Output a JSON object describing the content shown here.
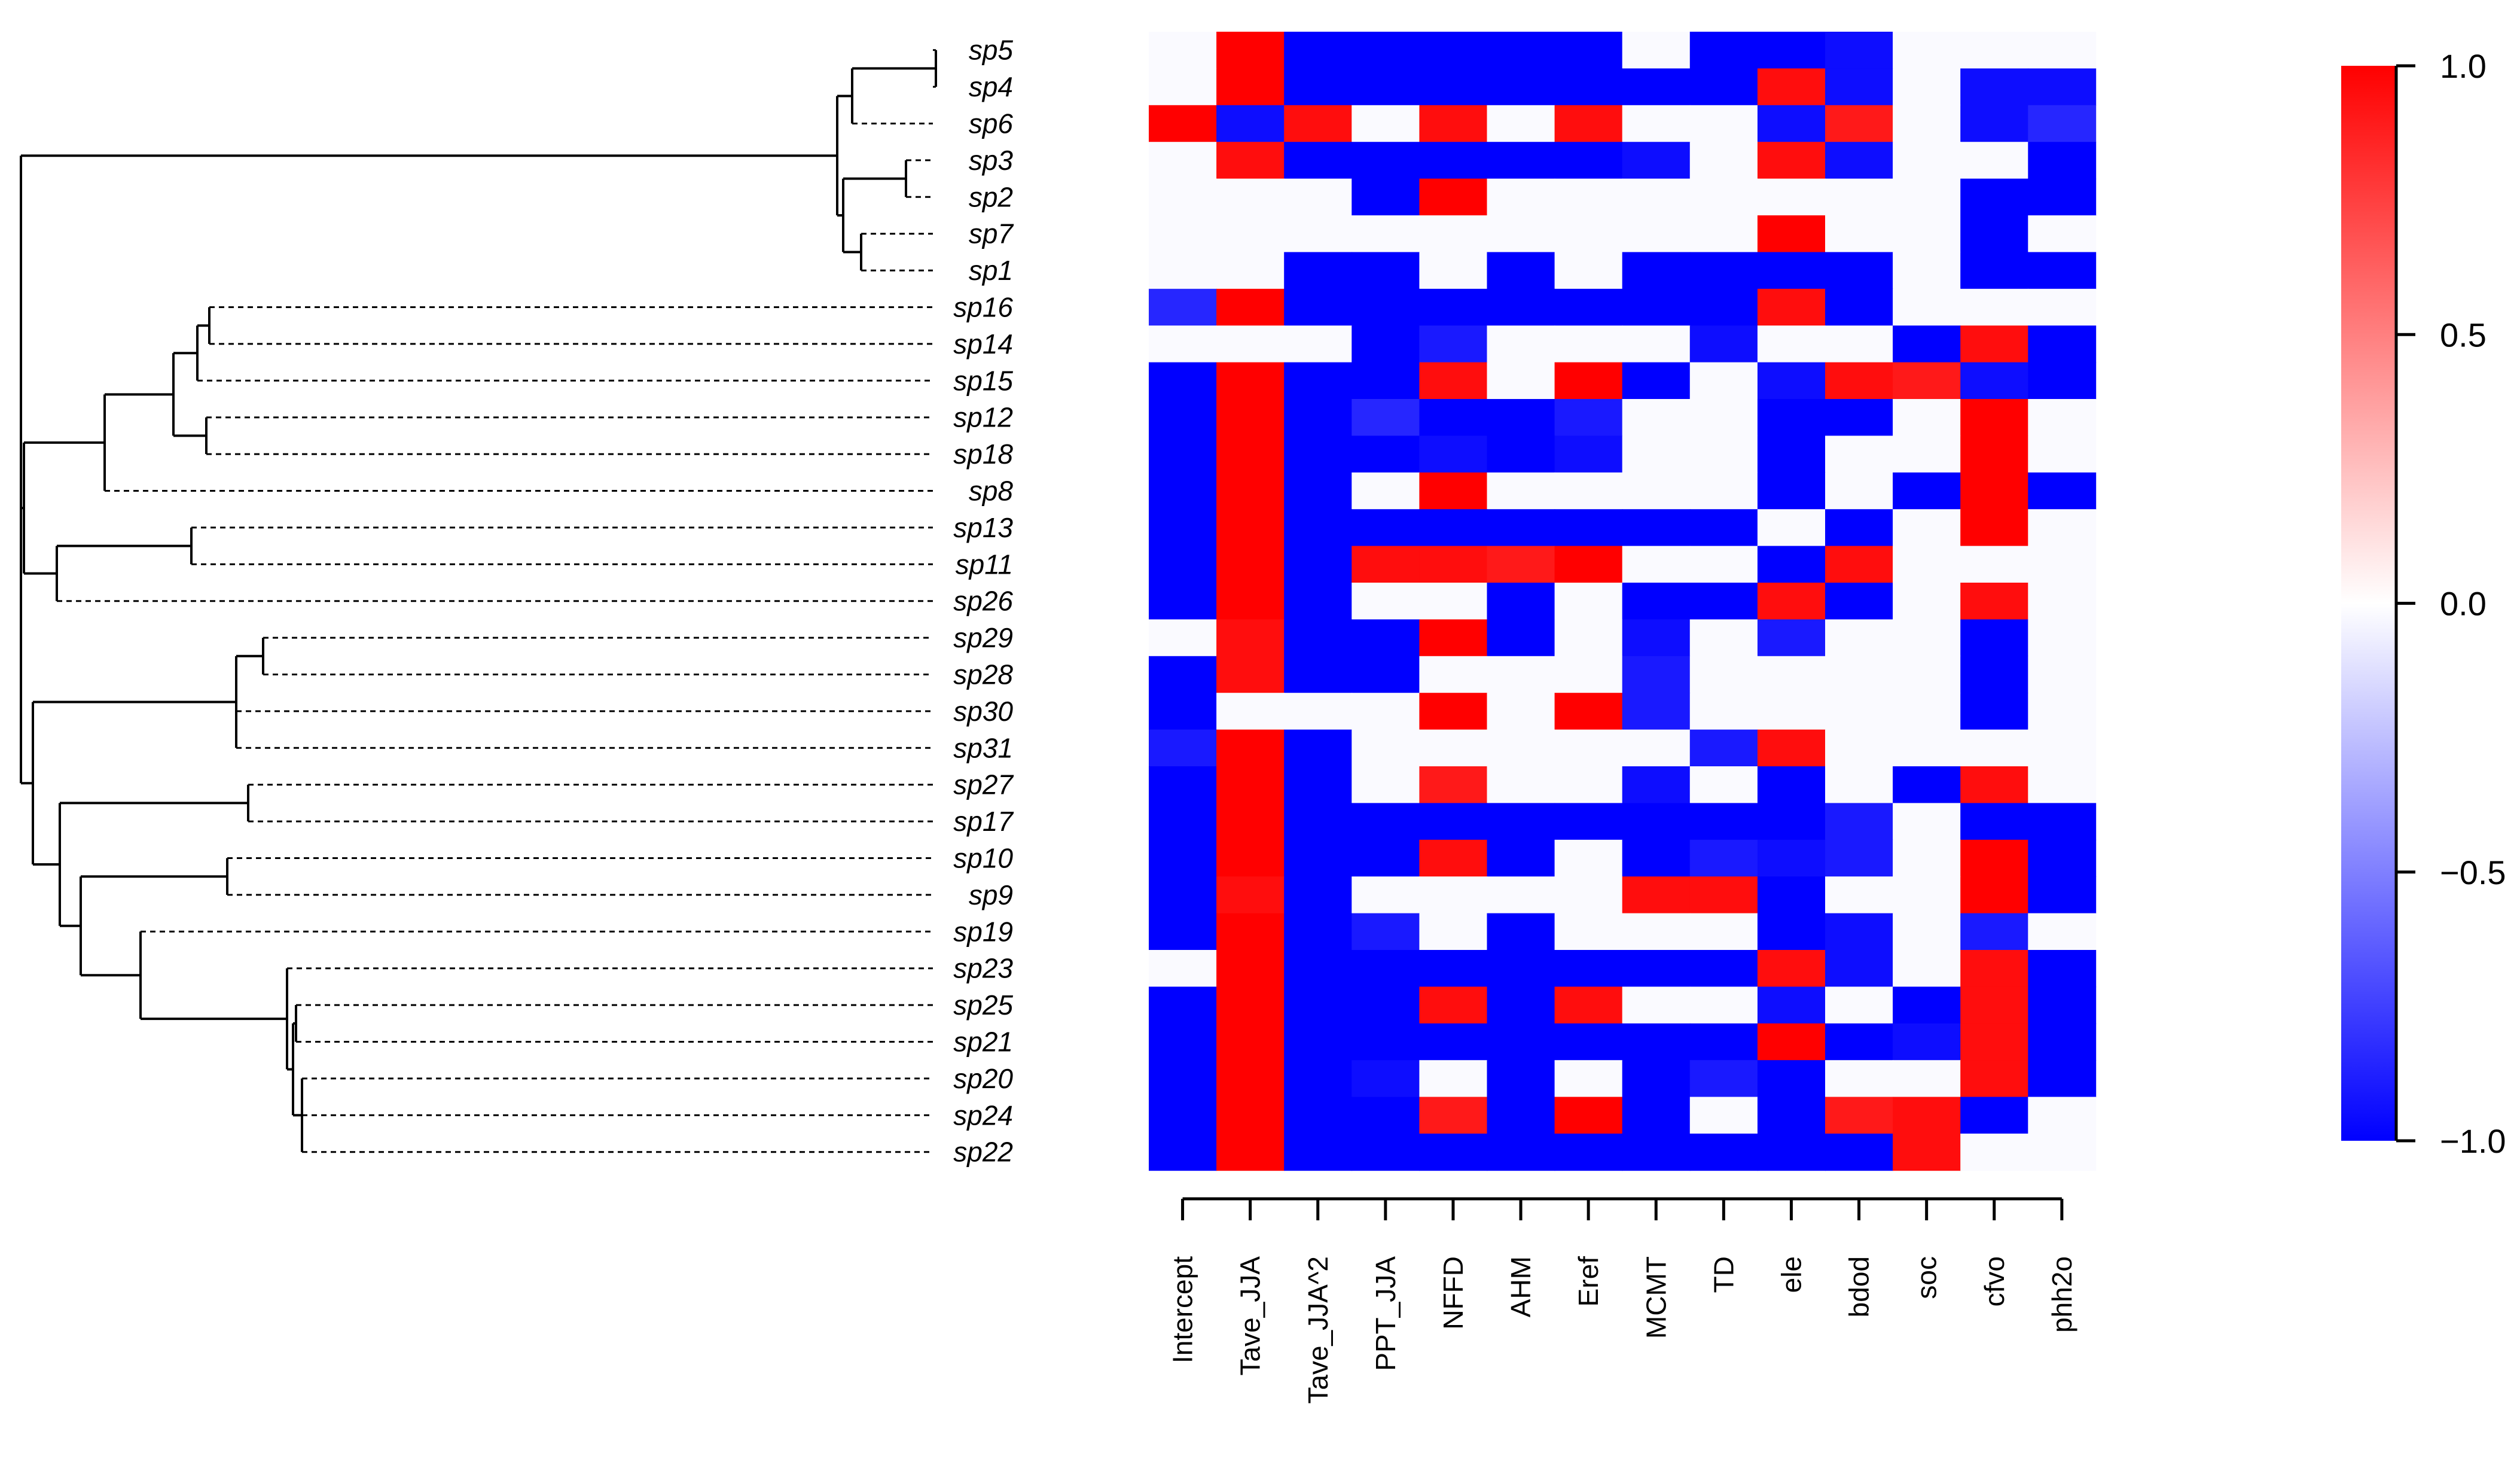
{
  "chart_data": {
    "type": "heatmap",
    "title": "",
    "xlabel": "",
    "ylabel": "",
    "species": [
      "sp5",
      "sp4",
      "sp6",
      "sp3",
      "sp2",
      "sp7",
      "sp1",
      "sp16",
      "sp14",
      "sp15",
      "sp12",
      "sp18",
      "sp8",
      "sp13",
      "sp11",
      "sp26",
      "sp29",
      "sp28",
      "sp30",
      "sp31",
      "sp27",
      "sp17",
      "sp10",
      "sp9",
      "sp19",
      "sp23",
      "sp25",
      "sp21",
      "sp20",
      "sp24",
      "sp22"
    ],
    "variables": [
      "Intercept",
      "Tave_JJA",
      "Tave_JJA^2",
      "PPT_JJA",
      "NFFD",
      "AHM",
      "Eref",
      "MCMT",
      "TD",
      "ele",
      "bdod",
      "soc",
      "cfvo",
      "phh2o"
    ],
    "values": [
      [
        0,
        1,
        -1,
        -1,
        -1,
        -1,
        -1,
        0,
        -1,
        -1,
        -0.95,
        0,
        0,
        0
      ],
      [
        0,
        1,
        -1,
        -1,
        -1,
        -1,
        -1,
        -1,
        -1,
        0.95,
        -0.95,
        0,
        -0.95,
        -0.95
      ],
      [
        1,
        -0.95,
        0.95,
        0,
        0.95,
        0,
        0.95,
        0,
        0,
        -0.95,
        0.9,
        0,
        -0.95,
        -0.85
      ],
      [
        0,
        0.95,
        -1,
        -1,
        -1,
        -1,
        -1,
        -0.95,
        0,
        0.95,
        -0.95,
        0,
        0,
        -1
      ],
      [
        0,
        0,
        0,
        -1,
        1,
        0,
        0,
        0,
        0,
        0,
        0,
        0,
        -1,
        -1
      ],
      [
        0,
        0,
        0,
        0,
        0,
        0,
        0,
        0,
        0,
        1,
        0,
        0,
        -1,
        0
      ],
      [
        0,
        0,
        -1,
        -1,
        0,
        -1,
        0,
        -1,
        -1,
        -1,
        -1,
        0,
        -1,
        -1
      ],
      [
        -0.85,
        1,
        -1,
        -1,
        -1,
        -1,
        -1,
        -1,
        -1,
        0.95,
        -1,
        0,
        0,
        0
      ],
      [
        0,
        0,
        0,
        -1,
        -0.9,
        0,
        0,
        0,
        -0.95,
        0,
        0,
        -1,
        0.95,
        -1
      ],
      [
        -1,
        1,
        -1,
        -1,
        0.95,
        0,
        1,
        -1,
        0,
        -0.95,
        0.95,
        0.9,
        -0.95,
        -1
      ],
      [
        -1,
        1,
        -1,
        -0.85,
        -1,
        -1,
        -0.9,
        0,
        0,
        -1,
        -1,
        0,
        1,
        0
      ],
      [
        -1,
        1,
        -1,
        -1,
        -0.95,
        -1,
        -0.95,
        0,
        0,
        -1,
        0,
        0,
        1,
        0
      ],
      [
        -1,
        1,
        -1,
        0,
        1,
        0,
        0,
        0,
        0,
        -1,
        0,
        -1,
        1,
        -1
      ],
      [
        -1,
        1,
        -1,
        -1,
        -1,
        -1,
        -1,
        -1,
        -1,
        0,
        -1,
        0,
        1,
        0
      ],
      [
        -1,
        1,
        -1,
        0.95,
        0.95,
        0.9,
        1,
        0,
        0,
        -1,
        0.95,
        0,
        0,
        0
      ],
      [
        -1,
        1,
        -1,
        0,
        0,
        -1,
        0,
        -1,
        -1,
        0.95,
        -1,
        0,
        0.95,
        0
      ],
      [
        0,
        0.95,
        -1,
        -1,
        1,
        -1,
        0,
        -0.95,
        0,
        -0.9,
        0,
        0,
        -1,
        0
      ],
      [
        -1,
        0.95,
        -1,
        -1,
        0,
        0,
        0,
        -0.9,
        0,
        0,
        0,
        0,
        -1,
        0
      ],
      [
        -1,
        0,
        0,
        0,
        1,
        0,
        1,
        -0.9,
        0,
        0,
        0,
        0,
        -1,
        0
      ],
      [
        -0.9,
        1,
        -1,
        0,
        0,
        0,
        0,
        0,
        -0.9,
        0.95,
        0,
        0,
        0,
        0
      ],
      [
        -1,
        1,
        -1,
        0,
        0.9,
        0,
        0,
        -0.95,
        0,
        -1,
        0,
        -1,
        0.95,
        0
      ],
      [
        -1,
        1,
        -1,
        -1,
        -1,
        -1,
        -1,
        -1,
        -1,
        -1,
        -0.9,
        0,
        -1,
        -1
      ],
      [
        -1,
        1,
        -1,
        -1,
        0.95,
        -1,
        0,
        -1,
        -0.9,
        -0.95,
        -0.9,
        0,
        1,
        -1
      ],
      [
        -1,
        0.95,
        -1,
        0,
        0,
        0,
        0,
        0.95,
        0.95,
        -1,
        0,
        0,
        1,
        -1
      ],
      [
        -1,
        1,
        -1,
        -0.9,
        0,
        -1,
        0,
        0,
        0,
        -1,
        -0.95,
        0,
        -0.9,
        0
      ],
      [
        0,
        1,
        -1,
        -1,
        -1,
        -1,
        -1,
        -1,
        -1,
        0.95,
        -0.95,
        0,
        0.95,
        -1
      ],
      [
        -1,
        1,
        -1,
        -1,
        0.95,
        -1,
        0.95,
        0,
        0,
        -0.95,
        0,
        -1,
        0.95,
        -1
      ],
      [
        -1,
        1,
        -1,
        -1,
        -1,
        -1,
        -1,
        -1,
        -1,
        1,
        -1,
        -0.95,
        0.95,
        -1
      ],
      [
        -1,
        1,
        -1,
        -0.95,
        0,
        -1,
        0,
        -1,
        -0.9,
        -1,
        0,
        0,
        0.95,
        -1
      ],
      [
        -1,
        1,
        -1,
        -1,
        0.9,
        -1,
        1,
        -1,
        0,
        -1,
        0.9,
        0.95,
        -1,
        0
      ],
      [
        -1,
        1,
        -1,
        -1,
        -1,
        -1,
        -1,
        -1,
        -1,
        -1,
        -1,
        0.95,
        0,
        0
      ]
    ],
    "colorbar": {
      "range": [
        -1,
        1
      ],
      "ticks": [
        "1.0",
        "0.5",
        "0.0",
        "−0.5",
        "−1.0"
      ],
      "low_color": "#0000ff",
      "mid_color": "#ffffff",
      "high_color": "#ff0000"
    }
  }
}
